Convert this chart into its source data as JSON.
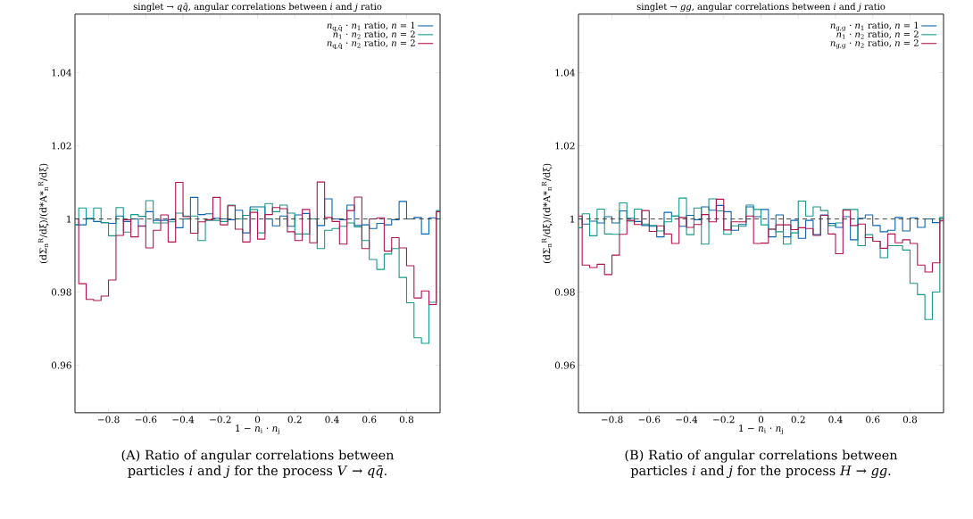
{
  "chart_data": [
    {
      "type": "step",
      "title": "singlet → *qq̄*, angular correlations between *i* and *j* ratio",
      "xlabel": "1 − *n*$_{i}$ · *n*$_{j}$",
      "ylabel": "(dΣ$_{n}$$^{R}$/dξ)/(d*A*$_{n}$$^{R}$/dξ)",
      "annotations": [
        "(A) Ratio of angular correlations between particles *i* and *j* for the process *V* → *qq̄*."
      ],
      "x": [
        -0.98,
        -0.96,
        -0.92,
        -0.88,
        -0.84,
        -0.8,
        -0.76,
        -0.72,
        -0.68,
        -0.64,
        -0.6,
        -0.56,
        -0.52,
        -0.48,
        -0.44,
        -0.4,
        -0.36,
        -0.32,
        -0.28,
        -0.24,
        -0.2,
        -0.16,
        -0.12,
        -0.08,
        -0.04,
        0,
        0.04,
        0.08,
        0.12,
        0.16,
        0.2,
        0.24,
        0.28,
        0.32,
        0.36,
        0.4,
        0.44,
        0.48,
        0.52,
        0.56,
        0.6,
        0.64,
        0.68,
        0.72,
        0.76,
        0.8,
        0.84,
        0.88,
        0.92,
        0.96,
        0.98
      ],
      "series": [
        {
          "name": "*n*$_{q,q̄}$ · *n*$_{1}$ ratio, *n* = 1",
          "color": "#0a64b0",
          "values": [
            0.9984,
            0.9984,
            1.0,
            0.9993,
            0.999,
            0.9988,
            1.0008,
            0.9993,
            1.0,
            0.998,
            1.002,
            0.9996,
            0.9996,
            0.9998,
            0.9976,
            1.0,
            1.0059,
            1.0012,
            1.0014,
            1.0002,
            1.0,
            0.9998,
            1.0024,
            0.9962,
            1.0033,
            1.0033,
            1.0,
            0.9981,
            1.0008,
            0.998,
            1.0011,
            1.0015,
            1.0,
            0.9982,
            1.0055,
            1.0,
            0.9998,
            1.0038,
            0.9982,
            0.9984,
            0.9974,
            0.9988,
            0.9984,
            0.9998,
            1.0048,
            1.0,
            1.0004,
            0.9959,
            1.0003,
            1.0,
            1.0
          ]
        },
        {
          "name": "*n*$_{1}$ · *n*$_{2}$ ratio, *n* = 2",
          "color": "#14998a",
          "values": [
            0.9984,
            1.003,
            1.0002,
            1.003,
            0.999,
            0.9954,
            1.0031,
            0.9964,
            1.0012,
            1.0007,
            1.005,
            0.9989,
            0.9989,
            0.9992,
            1.0016,
            1.0008,
            1.0008,
            0.9941,
            0.9996,
            0.9996,
            0.9993,
            1.0038,
            1.0,
            1.001,
            1.0026,
            0.9962,
            1.0042,
            1.002,
            1.0038,
            1.0016,
            0.9959,
            0.9959,
            1.0,
            0.9919,
            0.9969,
            0.9974,
            0.998,
            0.9989,
            0.9978,
            0.9941,
            0.9889,
            0.9862,
            0.9904,
            0.9919,
            0.984,
            0.9771,
            0.9675,
            0.966,
            0.9772,
            1.0023,
            1.0023
          ]
        },
        {
          "name": "*n*$_{q,q̄}$ · *n*$_{2}$ ratio, *n* = 2",
          "color": "#b1154c",
          "values": [
            1.0,
            0.9823,
            0.978,
            0.9777,
            0.9789,
            0.9833,
            0.9955,
            0.9998,
            0.9951,
            0.9981,
            0.9921,
            0.9969,
            1.0011,
            0.9937,
            1.01,
            1.0006,
            0.9961,
            0.9992,
            0.9998,
            1.0059,
            0.9984,
            1.0036,
            0.9972,
            0.9937,
            1.0018,
            0.9945,
            1.0012,
            1.0031,
            1.0028,
            0.9965,
            0.9941,
            1.0026,
            0.9935,
            1.0101,
            1.0004,
            0.9993,
            0.9931,
            1.0023,
            1.006,
            0.9919,
            1.0,
            1.0003,
            0.9912,
            0.9949,
            0.9921,
            0.9872,
            0.9784,
            0.9803,
            0.9766,
            1.002,
            1.002
          ]
        }
      ],
      "xlim": [
        -0.98,
        0.98
      ],
      "ylim": [
        0.947,
        1.056
      ],
      "xticks": [
        {
          "value": -0.8,
          "label": "−0.8"
        },
        {
          "value": -0.6,
          "label": "−0.6"
        },
        {
          "value": -0.4,
          "label": "−0.4"
        },
        {
          "value": -0.2,
          "label": "−0.2"
        },
        0,
        0.2,
        0.4,
        0.6,
        0.8
      ],
      "yticks": [
        0.96,
        0.98,
        1,
        1.02,
        1.04
      ],
      "ref_lines": [
        {
          "axis": "y",
          "value": 1,
          "color": "#333333",
          "line_style": "dashed"
        }
      ],
      "legend": "top right",
      "grid": false,
      "line_style": "solid"
    },
    {
      "type": "step",
      "title": "singlet → *gg*, angular correlations between *i* and *j* ratio",
      "xlabel": "1 − *n*$_{i}$ · *n*$_{j}$",
      "ylabel": "(dΣ$_{n}$$^{R}$/dξ)/(d*A*$_{n}$$^{R}$/dξ)",
      "annotations": [
        "(B) Ratio of angular correlations between particles *i* and *j* for the process *H* → *gg*."
      ],
      "x": [
        -0.98,
        -0.96,
        -0.92,
        -0.88,
        -0.84,
        -0.8,
        -0.76,
        -0.72,
        -0.68,
        -0.64,
        -0.6,
        -0.56,
        -0.52,
        -0.48,
        -0.44,
        -0.4,
        -0.36,
        -0.32,
        -0.28,
        -0.24,
        -0.2,
        -0.16,
        -0.12,
        -0.08,
        -0.04,
        0,
        0.04,
        0.08,
        0.12,
        0.16,
        0.2,
        0.24,
        0.28,
        0.32,
        0.36,
        0.4,
        0.44,
        0.48,
        0.52,
        0.56,
        0.6,
        0.64,
        0.68,
        0.72,
        0.76,
        0.8,
        0.84,
        0.88,
        0.92,
        0.96,
        0.98
      ],
      "series": [
        {
          "name": "*n*$_{g,g}$ · *n*$_{1}$ ratio, *n* = 1",
          "color": "#0a64b0",
          "values": [
            1.0,
            0.9986,
            0.9994,
            0.9989,
            1.0006,
            0.9989,
            1.0022,
            1.0002,
            0.9993,
            0.9982,
            0.998,
            0.9951,
            1.0018,
            1.0008,
            0.998,
            1.001,
            0.9998,
            1.0033,
            1.0024,
            1.0037,
            1.002,
            0.9969,
            0.9985,
            1.0033,
            1.0006,
            1.0026,
            0.9951,
            1.0011,
            0.9951,
            0.9996,
            0.9947,
            0.9996,
            0.9957,
            1.0011,
            0.9988,
            0.9977,
            1.0006,
            0.9943,
            1.0002,
            1.0011,
            0.9982,
            0.9965,
            0.9969,
            1.0004,
            0.9967,
            1.0003,
            0.9977,
            1.0,
            0.999,
            1.0,
            1.0
          ]
        },
        {
          "name": "*n*$_{1}$ · *n*$_{2}$ ratio, *n* = 2",
          "color": "#14998a",
          "values": [
            0.9976,
            1.0014,
            0.9954,
            1.0027,
            0.9959,
            0.9958,
            1.0044,
            0.9994,
            1.0027,
            0.9986,
            0.9982,
            0.9967,
            0.9992,
            1.0008,
            1.0057,
            0.9957,
            1.003,
            0.9931,
            1.0055,
            1.0022,
            0.9958,
            0.9981,
            0.998,
            1.0038,
            1.0026,
            0.9984,
            0.9972,
            0.9965,
            0.9931,
            0.9962,
            1.0049,
            1.0008,
            1.0033,
            1.0023,
            0.9982,
            0.9989,
            1.0026,
            1.0026,
            0.9927,
            0.9957,
            0.9939,
            0.9894,
            0.9927,
            0.9927,
            0.9915,
            0.9824,
            0.9793,
            0.9725,
            0.98,
            1.0005,
            1.0005
          ]
        },
        {
          "name": "*n*$_{g,g}$ · *n*$_{2}$ ratio, *n* = 2",
          "color": "#b1154c",
          "values": [
            1.0008,
            0.9874,
            0.9867,
            0.9876,
            0.9848,
            0.9901,
            0.9958,
            0.9996,
            0.9985,
            1.0023,
            0.9966,
            0.9981,
            0.9959,
            0.9933,
            1.0004,
            0.9977,
            0.9985,
            1.0012,
            0.9992,
            1.0054,
            0.997,
            0.9992,
            0.9992,
            1.0008,
            0.9933,
            0.9934,
            0.9972,
            0.9984,
            0.9984,
            0.9971,
            0.9976,
            0.9974,
            0.9955,
            1.001,
            0.9959,
            0.9905,
            1.0024,
            0.9982,
            0.9986,
            0.9949,
            0.9939,
            0.992,
            0.9959,
            0.9935,
            0.9943,
            0.9933,
            0.9874,
            0.9855,
            0.988,
            0.9995,
            0.9995
          ]
        }
      ],
      "xlim": [
        -0.98,
        0.98
      ],
      "ylim": [
        0.947,
        1.056
      ],
      "xticks": [
        {
          "value": -0.8,
          "label": "−0.8"
        },
        {
          "value": -0.6,
          "label": "−0.6"
        },
        {
          "value": -0.4,
          "label": "−0.4"
        },
        {
          "value": -0.2,
          "label": "−0.2"
        },
        0,
        0.2,
        0.4,
        0.6,
        0.8
      ],
      "yticks": [
        0.96,
        0.98,
        1,
        1.02,
        1.04
      ],
      "ref_lines": [
        {
          "axis": "y",
          "value": 1,
          "color": "#333333",
          "line_style": "dashed"
        }
      ],
      "legend": "top right",
      "grid": false,
      "line_style": "solid"
    }
  ]
}
